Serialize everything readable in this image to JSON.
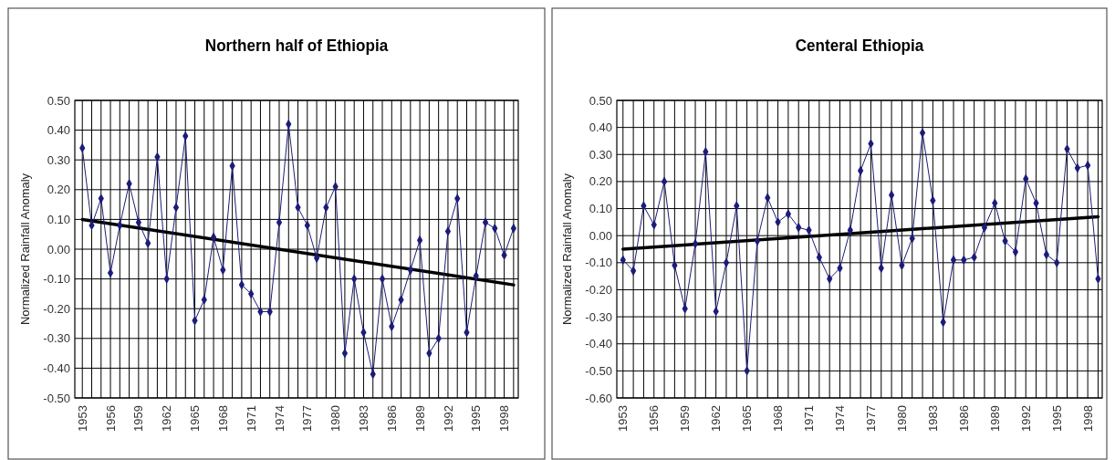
{
  "chart_data": [
    {
      "type": "line",
      "title": "Northern half of Ethiopia",
      "ylabel": "Normalized Rainfall Anomaly",
      "grid": true,
      "marker": "diamond",
      "line_style": "solid",
      "xlim": [
        1952.2,
        1999.5
      ],
      "ylim": [
        -0.5,
        0.5
      ],
      "xticks": [
        1953,
        {
          "value": 1954,
          "label": null
        },
        {
          "value": 1955,
          "label": null
        },
        1956,
        {
          "value": 1957,
          "label": null
        },
        {
          "value": 1958,
          "label": null
        },
        1959,
        {
          "value": 1960,
          "label": null
        },
        {
          "value": 1961,
          "label": null
        },
        1962,
        {
          "value": 1963,
          "label": null
        },
        {
          "value": 1964,
          "label": null
        },
        1965,
        {
          "value": 1966,
          "label": null
        },
        {
          "value": 1967,
          "label": null
        },
        1968,
        {
          "value": 1969,
          "label": null
        },
        {
          "value": 1970,
          "label": null
        },
        1971,
        {
          "value": 1972,
          "label": null
        },
        {
          "value": 1973,
          "label": null
        },
        1974,
        {
          "value": 1975,
          "label": null
        },
        {
          "value": 1976,
          "label": null
        },
        1977,
        {
          "value": 1978,
          "label": null
        },
        {
          "value": 1979,
          "label": null
        },
        1980,
        {
          "value": 1981,
          "label": null
        },
        {
          "value": 1982,
          "label": null
        },
        1983,
        {
          "value": 1984,
          "label": null
        },
        {
          "value": 1985,
          "label": null
        },
        1986,
        {
          "value": 1987,
          "label": null
        },
        {
          "value": 1988,
          "label": null
        },
        1989,
        {
          "value": 1990,
          "label": null
        },
        {
          "value": 1991,
          "label": null
        },
        1992,
        {
          "value": 1993,
          "label": null
        },
        {
          "value": 1994,
          "label": null
        },
        1995,
        {
          "value": 1996,
          "label": null
        },
        {
          "value": 1997,
          "label": null
        },
        1998,
        {
          "value": 1999,
          "label": null
        }
      ],
      "yticks": [
        {
          "value": -0.5,
          "label": "-0.50"
        },
        {
          "value": -0.4,
          "label": "-0.40"
        },
        {
          "value": -0.3,
          "label": "-0.30"
        },
        {
          "value": -0.2,
          "label": "-0.20"
        },
        {
          "value": -0.1,
          "label": "-0.10"
        },
        {
          "value": 0,
          "label": "0.00"
        },
        {
          "value": 0.1,
          "label": "0.10"
        },
        {
          "value": 0.2,
          "label": "0.20"
        },
        {
          "value": 0.3,
          "label": "0.30"
        },
        {
          "value": 0.4,
          "label": "0.40"
        },
        {
          "value": 0.5,
          "label": "0.50"
        }
      ],
      "x": [
        1953,
        1954,
        1955,
        1956,
        1957,
        1958,
        1959,
        1960,
        1961,
        1962,
        1963,
        1964,
        1965,
        1966,
        1967,
        1968,
        1969,
        1970,
        1971,
        1972,
        1973,
        1974,
        1975,
        1976,
        1977,
        1978,
        1979,
        1980,
        1981,
        1982,
        1983,
        1984,
        1985,
        1986,
        1987,
        1988,
        1989,
        1990,
        1991,
        1992,
        1993,
        1994,
        1995,
        1996,
        1997,
        1998,
        1999
      ],
      "series": [
        {
          "color": "#1c1c78",
          "values": [
            0.34,
            0.08,
            0.17,
            -0.08,
            0.08,
            0.22,
            0.09,
            0.02,
            0.31,
            -0.1,
            0.14,
            0.38,
            -0.24,
            -0.17,
            0.04,
            -0.07,
            0.28,
            -0.12,
            -0.15,
            -0.21,
            -0.21,
            0.09,
            0.42,
            0.14,
            0.08,
            -0.03,
            0.14,
            0.21,
            -0.35,
            -0.1,
            -0.28,
            -0.42,
            -0.1,
            -0.26,
            -0.17,
            -0.07,
            0.03,
            -0.35,
            -0.3,
            0.06,
            0.17,
            -0.28,
            -0.09,
            0.09,
            0.07,
            -0.02,
            0.07
          ]
        },
        {
          "type": "line",
          "color": "#000000",
          "marker": "none",
          "values": [
            0.1,
            null,
            null,
            null,
            null,
            null,
            null,
            null,
            null,
            null,
            null,
            null,
            null,
            null,
            null,
            null,
            null,
            null,
            null,
            null,
            null,
            null,
            null,
            null,
            null,
            null,
            null,
            null,
            null,
            null,
            null,
            null,
            null,
            null,
            null,
            null,
            null,
            null,
            null,
            null,
            null,
            null,
            null,
            null,
            null,
            null,
            -0.12
          ]
        }
      ]
    },
    {
      "type": "line",
      "title": "Centeral Ethiopia",
      "ylabel": "Normalized Rainfall Anomaly",
      "grid": true,
      "marker": "diamond",
      "line_style": "solid",
      "xlim": [
        1952.4,
        1999.4
      ],
      "ylim": [
        -0.6,
        0.5
      ],
      "xticks": [
        1953,
        {
          "value": 1954,
          "label": null
        },
        {
          "value": 1955,
          "label": null
        },
        1956,
        {
          "value": 1957,
          "label": null
        },
        {
          "value": 1958,
          "label": null
        },
        1959,
        {
          "value": 1960,
          "label": null
        },
        {
          "value": 1961,
          "label": null
        },
        1962,
        {
          "value": 1963,
          "label": null
        },
        {
          "value": 1964,
          "label": null
        },
        1965,
        {
          "value": 1966,
          "label": null
        },
        {
          "value": 1967,
          "label": null
        },
        1968,
        {
          "value": 1969,
          "label": null
        },
        {
          "value": 1970,
          "label": null
        },
        1971,
        {
          "value": 1972,
          "label": null
        },
        {
          "value": 1973,
          "label": null
        },
        1974,
        {
          "value": 1975,
          "label": null
        },
        {
          "value": 1976,
          "label": null
        },
        1977,
        {
          "value": 1978,
          "label": null
        },
        {
          "value": 1979,
          "label": null
        },
        1980,
        {
          "value": 1981,
          "label": null
        },
        {
          "value": 1982,
          "label": null
        },
        1983,
        {
          "value": 1984,
          "label": null
        },
        {
          "value": 1985,
          "label": null
        },
        1986,
        {
          "value": 1987,
          "label": null
        },
        {
          "value": 1988,
          "label": null
        },
        1989,
        {
          "value": 1990,
          "label": null
        },
        {
          "value": 1991,
          "label": null
        },
        1992,
        {
          "value": 1993,
          "label": null
        },
        {
          "value": 1994,
          "label": null
        },
        1995,
        {
          "value": 1996,
          "label": null
        },
        {
          "value": 1997,
          "label": null
        },
        1998,
        {
          "value": 1999,
          "label": null
        }
      ],
      "yticks": [
        {
          "value": -0.6,
          "label": "-0.60"
        },
        {
          "value": -0.5,
          "label": "-0.50"
        },
        {
          "value": -0.4,
          "label": "-0.40"
        },
        {
          "value": -0.3,
          "label": "-0.30"
        },
        {
          "value": -0.2,
          "label": "-0.20"
        },
        {
          "value": -0.1,
          "label": "-0.10"
        },
        {
          "value": 0,
          "label": "0.00"
        },
        {
          "value": 0.1,
          "label": "0.10"
        },
        {
          "value": 0.2,
          "label": "0.20"
        },
        {
          "value": 0.3,
          "label": "0.30"
        },
        {
          "value": 0.4,
          "label": "0.40"
        },
        {
          "value": 0.5,
          "label": "0.50"
        }
      ],
      "x": [
        1953,
        1954,
        1955,
        1956,
        1957,
        1958,
        1959,
        1960,
        1961,
        1962,
        1963,
        1964,
        1965,
        1966,
        1967,
        1968,
        1969,
        1970,
        1971,
        1972,
        1973,
        1974,
        1975,
        1976,
        1977,
        1978,
        1979,
        1980,
        1981,
        1982,
        1983,
        1984,
        1985,
        1986,
        1987,
        1988,
        1989,
        1990,
        1991,
        1992,
        1993,
        1994,
        1995,
        1996,
        1997,
        1998,
        1999
      ],
      "series": [
        {
          "color": "#1c1c78",
          "values": [
            -0.09,
            -0.13,
            0.11,
            0.04,
            0.2,
            -0.11,
            -0.27,
            -0.03,
            0.31,
            -0.28,
            -0.1,
            0.11,
            -0.5,
            -0.02,
            0.14,
            0.05,
            0.08,
            0.03,
            0.02,
            -0.08,
            -0.16,
            -0.12,
            0.02,
            0.24,
            0.34,
            -0.12,
            0.15,
            -0.11,
            -0.01,
            0.38,
            0.13,
            -0.32,
            -0.09,
            -0.09,
            -0.08,
            0.03,
            0.12,
            -0.02,
            -0.06,
            0.21,
            0.12,
            -0.07,
            -0.1,
            0.32,
            0.25,
            0.26,
            -0.16
          ]
        },
        {
          "type": "line",
          "color": "#000000",
          "marker": "none",
          "values": [
            -0.05,
            null,
            null,
            null,
            null,
            null,
            null,
            null,
            null,
            null,
            null,
            null,
            null,
            null,
            null,
            null,
            null,
            null,
            null,
            null,
            null,
            null,
            null,
            null,
            null,
            null,
            null,
            null,
            null,
            null,
            null,
            null,
            null,
            null,
            null,
            null,
            null,
            null,
            null,
            null,
            null,
            null,
            null,
            null,
            null,
            null,
            0.07
          ]
        }
      ]
    }
  ]
}
